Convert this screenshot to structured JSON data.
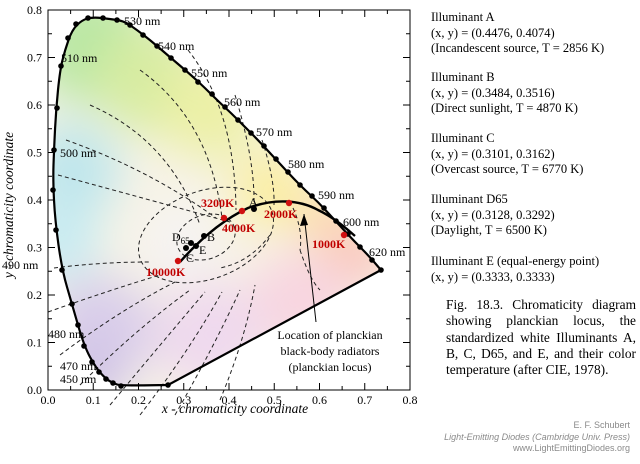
{
  "figure": {
    "x_axis_label": "x - chromaticity coordinate",
    "y_axis_label": "y - chromaticity coordinate",
    "x_ticks": [
      "0.0",
      "0.1",
      "0.2",
      "0.3",
      "0.4",
      "0.5",
      "0.6",
      "0.7",
      "0.8"
    ],
    "y_ticks": [
      "0.0",
      "0.1",
      "0.2",
      "0.3",
      "0.4",
      "0.5",
      "0.6",
      "0.7",
      "0.8"
    ],
    "wavelength_labels": [
      "450 nm",
      "470 nm",
      "480 nm",
      "490 nm",
      "500 nm",
      "510 nm",
      "530 nm",
      "540 nm",
      "550 nm",
      "560 nm",
      "570 nm",
      "580 nm",
      "590 nm",
      "600 nm",
      "620 nm"
    ],
    "temperature_labels": [
      "1000K",
      "2000K",
      "3200K",
      "4000K",
      "10000K"
    ],
    "point_labels": [
      "A",
      "B",
      "C",
      "E"
    ],
    "d65_label": {
      "main": "D",
      "sub": "65"
    },
    "planckian_annotation": [
      "Location of planckian",
      "black-body radiators",
      "(planckian locus)"
    ]
  },
  "illuminants": [
    {
      "name": "Illuminant A",
      "coords": "(x, y)  =  (0.4476, 0.4074)",
      "desc": "(Incandescent source, T = 2856 K)"
    },
    {
      "name": "Illuminant B",
      "coords": "(x, y)  =  (0.3484, 0.3516)",
      "desc": "(Direct sunlight, T = 4870 K)"
    },
    {
      "name": "Illuminant C",
      "coords": "(x, y)  =  (0.3101, 0.3162)",
      "desc": "(Overcast source, T = 6770 K)"
    },
    {
      "name": "Illuminant D65",
      "coords": "(x, y)  =  (0.3128, 0.3292)",
      "desc": "(Daylight, T = 6500 K)"
    },
    {
      "name": "Illuminant E (equal-energy point)",
      "coords": "(x, y)  =  (0.3333, 0.3333)",
      "desc": ""
    }
  ],
  "caption": "Fig. 18.3. Chromaticity diagram showing planckian locus, the standardized white Illuminants A, B, C, D65, and E, and their color temperature (after CIE, 1978).",
  "credit": {
    "author": "E. F. Schubert",
    "book": "Light-Emitting Diodes (Cambridge Univ. Press)",
    "site": "www.LightEmittingDiodes.org"
  },
  "colors": {
    "locus_dots": "#000000",
    "temperature_points": "#d01010",
    "temperature_text": "#c00000"
  }
}
